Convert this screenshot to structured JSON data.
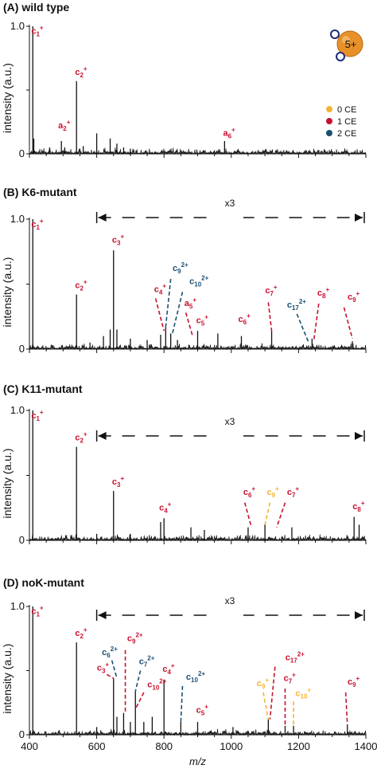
{
  "colors": {
    "ce0": "#f5b335",
    "ce1": "#c8102e",
    "ce2": "#1b4f72",
    "trace": "#111111"
  },
  "chart_data": {
    "type": "line",
    "x_axis": {
      "label": "m/z",
      "range": [
        400,
        1400
      ],
      "ticks": [
        400,
        600,
        800,
        1000,
        1200,
        1400
      ]
    },
    "y_axis": {
      "label": "intensity (a.u.)",
      "range": [
        0,
        1.0
      ],
      "ticks": [
        "0",
        "0.5",
        "1.0"
      ]
    },
    "legend": {
      "position": "top-right",
      "entries": [
        {
          "label": "0 CE",
          "color": "#f5b335"
        },
        {
          "label": "1 CE",
          "color": "#c8102e"
        },
        {
          "label": "2 CE",
          "color": "#1b4f72"
        }
      ]
    },
    "charge_badge": "5+",
    "panels": [
      {
        "title": "(A) wild type",
        "magnification": null,
        "peaks": [
          [
            410,
            1.0
          ],
          [
            413,
            0.12
          ],
          [
            460,
            0.05
          ],
          [
            495,
            0.1
          ],
          [
            505,
            0.05
          ],
          [
            540,
            0.57
          ],
          [
            560,
            0.06
          ],
          [
            600,
            0.16
          ],
          [
            640,
            0.12
          ],
          [
            660,
            0.08
          ],
          [
            680,
            0.05
          ],
          [
            700,
            0.04
          ],
          [
            980,
            0.1
          ]
        ],
        "annotations": [
          {
            "ion": "c",
            "n": "1",
            "z": "+",
            "color": "ce1",
            "x": 415,
            "y": 0.94
          },
          {
            "ion": "c",
            "n": "2",
            "z": "+",
            "color": "ce1",
            "x": 545,
            "y": 0.62
          },
          {
            "ion": "a",
            "n": "2",
            "z": "+",
            "color": "ce1",
            "x": 495,
            "y": 0.2
          },
          {
            "ion": "a",
            "n": "6",
            "z": "+",
            "color": "ce1",
            "x": 985,
            "y": 0.14
          }
        ]
      },
      {
        "title": "(B) K6-mutant",
        "magnification": "x3",
        "peaks": [
          [
            410,
            1.0
          ],
          [
            540,
            0.42
          ],
          [
            580,
            0.05
          ],
          [
            620,
            0.1
          ],
          [
            640,
            0.15
          ],
          [
            650,
            0.76
          ],
          [
            660,
            0.15
          ],
          [
            700,
            0.08
          ],
          [
            750,
            0.07
          ],
          [
            790,
            0.11
          ],
          [
            805,
            0.17
          ],
          [
            820,
            0.12
          ],
          [
            840,
            0.07
          ],
          [
            900,
            0.14
          ],
          [
            960,
            0.12
          ],
          [
            1030,
            0.1
          ],
          [
            1120,
            0.14
          ],
          [
            1240,
            0.08
          ],
          [
            1360,
            0.06
          ]
        ],
        "annotations": [
          {
            "ion": "c",
            "n": "1",
            "z": "+",
            "color": "ce1",
            "x": 415,
            "y": 0.94
          },
          {
            "ion": "c",
            "n": "2",
            "z": "+",
            "color": "ce1",
            "x": 545,
            "y": 0.47
          },
          {
            "ion": "c",
            "n": "3",
            "z": "+",
            "color": "ce1",
            "x": 655,
            "y": 0.82
          },
          {
            "ion": "c",
            "n": "9",
            "z": "2+",
            "color": "ce2",
            "x": 835,
            "y": 0.6,
            "line": [
              820,
              0.54,
              805,
              0.17
            ]
          },
          {
            "ion": "c",
            "n": "10",
            "z": "2+",
            "color": "ce2",
            "x": 885,
            "y": 0.5,
            "line": [
              855,
              0.44,
              825,
              0.12
            ]
          },
          {
            "ion": "c",
            "n": "4",
            "z": "+",
            "color": "ce1",
            "x": 780,
            "y": 0.44,
            "line": [
              775,
              0.39,
              800,
              0.14
            ]
          },
          {
            "ion": "a",
            "n": "5",
            "z": "+",
            "color": "ce1",
            "x": 870,
            "y": 0.33,
            "line": [
              865,
              0.28,
              885,
              0.1
            ]
          },
          {
            "ion": "c",
            "n": "5",
            "z": "+",
            "color": "ce1",
            "x": 905,
            "y": 0.2
          },
          {
            "ion": "c",
            "n": "6",
            "z": "+",
            "color": "ce1",
            "x": 1030,
            "y": 0.21
          },
          {
            "ion": "c",
            "n": "7",
            "z": "+",
            "color": "ce1",
            "x": 1110,
            "y": 0.43,
            "line": [
              1110,
              0.36,
              1120,
              0.14
            ]
          },
          {
            "ion": "c",
            "n": "17",
            "z": "2+",
            "color": "ce2",
            "x": 1175,
            "y": 0.32,
            "line": [
              1195,
              0.27,
              1230,
              0.05
            ]
          },
          {
            "ion": "c",
            "n": "8",
            "z": "+",
            "color": "ce1",
            "x": 1265,
            "y": 0.41,
            "line": [
              1260,
              0.35,
              1245,
              0.06
            ]
          },
          {
            "ion": "c",
            "n": "9",
            "z": "+",
            "color": "ce1",
            "x": 1355,
            "y": 0.38,
            "line": [
              1335,
              0.32,
              1360,
              0.08
            ]
          }
        ]
      },
      {
        "title": "(C) K11-mutant",
        "magnification": "x3",
        "peaks": [
          [
            410,
            1.0
          ],
          [
            540,
            0.72
          ],
          [
            600,
            0.05
          ],
          [
            650,
            0.38
          ],
          [
            700,
            0.05
          ],
          [
            790,
            0.14
          ],
          [
            800,
            0.17
          ],
          [
            880,
            0.1
          ],
          [
            920,
            0.08
          ],
          [
            1050,
            0.1
          ],
          [
            1100,
            0.12
          ],
          [
            1180,
            0.1
          ],
          [
            1365,
            0.18
          ],
          [
            1380,
            0.12
          ]
        ],
        "annotations": [
          {
            "ion": "c",
            "n": "1",
            "z": "+",
            "color": "ce1",
            "x": 415,
            "y": 0.94
          },
          {
            "ion": "c",
            "n": "2",
            "z": "+",
            "color": "ce1",
            "x": 545,
            "y": 0.77
          },
          {
            "ion": "c",
            "n": "3",
            "z": "+",
            "color": "ce1",
            "x": 655,
            "y": 0.43
          },
          {
            "ion": "c",
            "n": "4",
            "z": "+",
            "color": "ce1",
            "x": 795,
            "y": 0.23
          },
          {
            "ion": "c",
            "n": "6",
            "z": "+",
            "color": "ce1",
            "x": 1045,
            "y": 0.35,
            "line": [
              1040,
              0.29,
              1060,
              0.1
            ]
          },
          {
            "ion": "c",
            "n": "9",
            "z": "+",
            "color": "ce0",
            "x": 1115,
            "y": 0.35,
            "line": [
              1115,
              0.29,
              1100,
              0.12
            ]
          },
          {
            "ion": "c",
            "n": "7",
            "z": "+",
            "color": "ce1",
            "x": 1175,
            "y": 0.35,
            "line": [
              1160,
              0.29,
              1135,
              0.1
            ]
          },
          {
            "ion": "c",
            "n": "8",
            "z": "+",
            "color": "ce1",
            "x": 1370,
            "y": 0.24
          }
        ]
      },
      {
        "title": "(D) noK-mutant",
        "magnification": "x3",
        "peaks": [
          [
            410,
            1.0
          ],
          [
            540,
            0.72
          ],
          [
            600,
            0.06
          ],
          [
            650,
            0.44
          ],
          [
            660,
            0.14
          ],
          [
            680,
            0.17
          ],
          [
            700,
            0.1
          ],
          [
            715,
            0.34
          ],
          [
            740,
            0.1
          ],
          [
            765,
            0.14
          ],
          [
            800,
            0.43
          ],
          [
            850,
            0.1
          ],
          [
            900,
            0.1
          ],
          [
            1005,
            0.06
          ],
          [
            1110,
            0.12
          ],
          [
            1160,
            0.07
          ],
          [
            1185,
            0.07
          ],
          [
            1345,
            0.08
          ]
        ],
        "annotations": [
          {
            "ion": "c",
            "n": "1",
            "z": "+",
            "color": "ce1",
            "x": 415,
            "y": 0.94
          },
          {
            "ion": "c",
            "n": "2",
            "z": "+",
            "color": "ce1",
            "x": 545,
            "y": 0.77
          },
          {
            "ion": "c",
            "n": "6",
            "z": "2+",
            "color": "ce2",
            "x": 625,
            "y": 0.62,
            "line": [
              645,
              0.58,
              660,
              0.44
            ]
          },
          {
            "ion": "c",
            "n": "9",
            "z": "2+",
            "color": "ce1",
            "x": 700,
            "y": 0.73,
            "line": [
              685,
              0.66,
              685,
              0.17
            ]
          },
          {
            "ion": "c",
            "n": "3",
            "z": "+",
            "color": "ce1",
            "x": 610,
            "y": 0.5,
            "line": [
              630,
              0.47,
              650,
              0.44
            ]
          },
          {
            "ion": "c",
            "n": "7",
            "z": "2+",
            "color": "ce2",
            "x": 735,
            "y": 0.55,
            "line": [
              730,
              0.5,
              715,
              0.34
            ]
          },
          {
            "ion": "c",
            "n": "4",
            "z": "+",
            "color": "ce1",
            "x": 805,
            "y": 0.49
          },
          {
            "ion": "c",
            "n": "10",
            "z": "2+",
            "color": "ce1",
            "x": 760,
            "y": 0.37,
            "line": [
              740,
              0.33,
              715,
              0.2
            ]
          },
          {
            "ion": "c",
            "n": "10",
            "z": "2+",
            "color": "ce2",
            "x": 875,
            "y": 0.43,
            "line": [
              855,
              0.38,
              850,
              0.1
            ]
          },
          {
            "ion": "c",
            "n": "5",
            "z": "+",
            "color": "ce1",
            "x": 905,
            "y": 0.17
          },
          {
            "ion": "c",
            "n": "9",
            "z": "+",
            "color": "ce0",
            "x": 1085,
            "y": 0.38,
            "line": [
              1095,
              0.33,
              1110,
              0.12
            ]
          },
          {
            "ion": "c",
            "n": "17",
            "z": "2+",
            "color": "ce1",
            "x": 1170,
            "y": 0.58,
            "line": [
              1130,
              0.53,
              1115,
              0.12
            ]
          },
          {
            "ion": "c",
            "n": "7",
            "z": "+",
            "color": "ce1",
            "x": 1165,
            "y": 0.42,
            "line": [
              1160,
              0.36,
              1160,
              0.07
            ]
          },
          {
            "ion": "c",
            "n": "10",
            "z": "+",
            "color": "ce0",
            "x": 1200,
            "y": 0.3,
            "line": [
              1185,
              0.26,
              1185,
              0.07
            ]
          },
          {
            "ion": "c",
            "n": "9",
            "z": "+",
            "color": "ce1",
            "x": 1355,
            "y": 0.39,
            "line": [
              1340,
              0.33,
              1345,
              0.08
            ]
          }
        ]
      }
    ]
  }
}
